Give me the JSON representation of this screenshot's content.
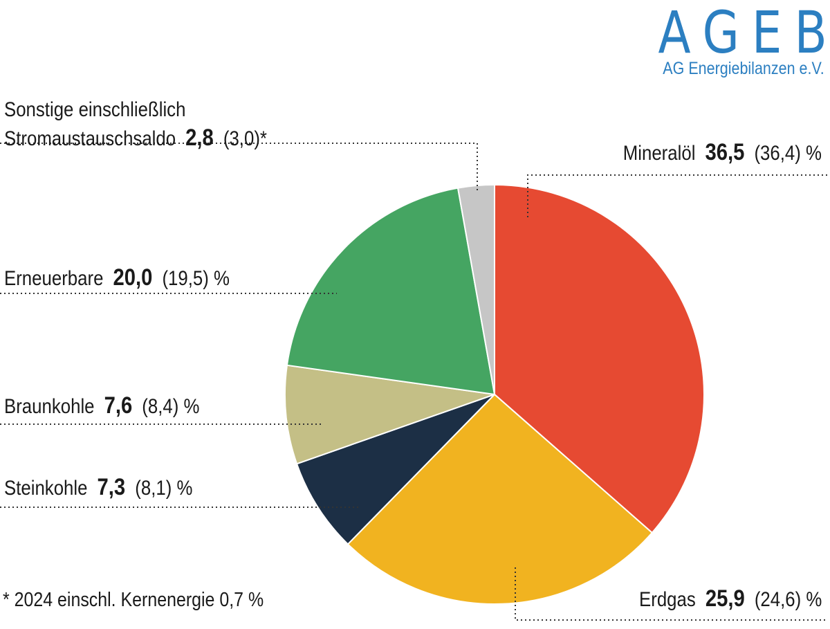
{
  "logo": {
    "title": "AGEB",
    "subtitle": "AG Energiebilanzen e.V."
  },
  "chart_data": {
    "type": "pie",
    "start_angle": "top",
    "direction": "clockwise",
    "unit": "%",
    "slices": [
      {
        "key": "mineraloel",
        "name": "Mineralöl",
        "value": 36.5,
        "value_label": "36,5",
        "prev_label": "(36,4)",
        "suffix": "%",
        "color": "#e64a32"
      },
      {
        "key": "erdgas",
        "name": "Erdgas",
        "value": 25.9,
        "value_label": "25,9",
        "prev_label": "(24,6)",
        "suffix": "%",
        "color": "#f1b320"
      },
      {
        "key": "steinkohle",
        "name": "Steinkohle",
        "value": 7.3,
        "value_label": "7,3",
        "prev_label": "(8,1)",
        "suffix": "%",
        "color": "#1c2f45"
      },
      {
        "key": "braunkohle",
        "name": "Braunkohle",
        "value": 7.6,
        "value_label": "7,6",
        "prev_label": "(8,4)",
        "suffix": "%",
        "color": "#c4bf86"
      },
      {
        "key": "erneuerbare",
        "name": "Erneuerbare",
        "value": 20.0,
        "value_label": "20,0",
        "prev_label": "(19,5)",
        "suffix": "%",
        "color": "#45a562"
      },
      {
        "key": "sonstige",
        "name_line1": "Sonstige einschließlich",
        "name_line2": "Stromaustauschsaldo",
        "value": 2.8,
        "value_label": "2,8",
        "prev_label": "(3,0)*",
        "suffix": "",
        "color": "#c6c6c6"
      }
    ],
    "footnote": "* 2024 einschl. Kernenergie 0,7 %"
  }
}
